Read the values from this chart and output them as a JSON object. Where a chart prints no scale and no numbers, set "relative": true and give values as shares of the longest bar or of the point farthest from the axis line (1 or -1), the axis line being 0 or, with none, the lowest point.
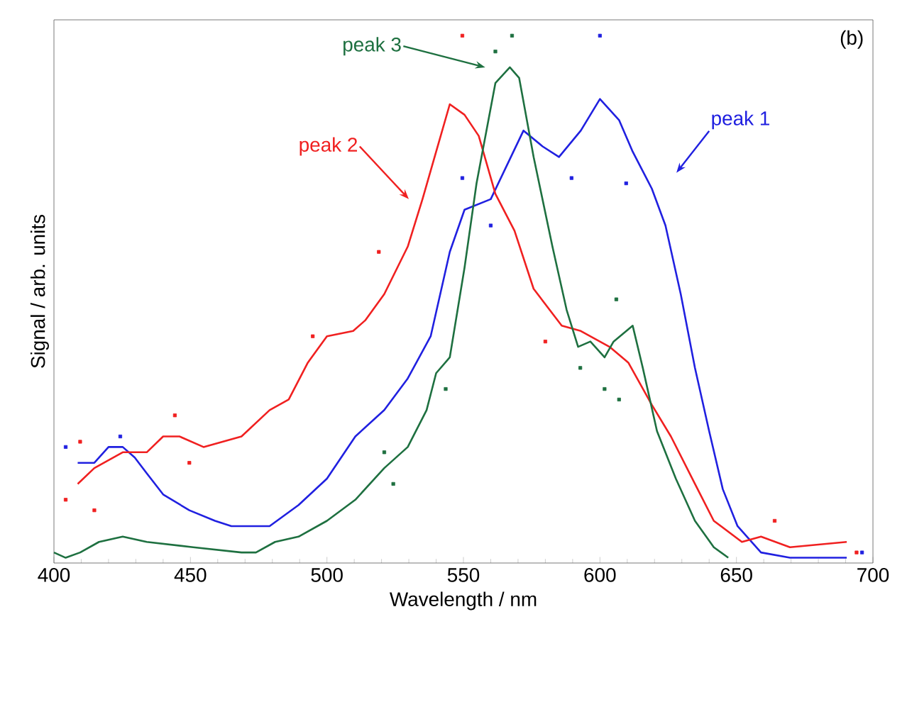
{
  "chart_data": {
    "type": "line",
    "xlabel": "Wavelength / nm",
    "ylabel": "Signal / arb. units",
    "relative": true,
    "xlim": [
      400,
      700
    ],
    "xticks": [
      400,
      450,
      500,
      550,
      600,
      650,
      700
    ],
    "annotations": [
      "peak 1",
      "peak 2",
      "peak 3",
      "(b)"
    ],
    "series": [
      {
        "color": "#2020e0",
        "x": [
          408.7,
          414.8,
          420,
          425.2,
          429.6,
          434,
          440,
          449.6,
          459,
          465,
          479,
          489.6,
          500,
          510.4,
          521,
          529.6,
          538,
          545,
          550.4,
          560,
          572,
          579,
          585,
          593,
          600,
          607,
          612,
          619,
          624,
          629.6,
          634.8,
          640,
          645,
          650.4,
          659,
          669.6,
          690.4
        ],
        "values": [
          0.19,
          0.19,
          0.22,
          0.22,
          0.2,
          0.17,
          0.13,
          0.1,
          0.08,
          0.07,
          0.07,
          0.11,
          0.16,
          0.24,
          0.29,
          0.35,
          0.43,
          0.59,
          0.67,
          0.69,
          0.82,
          0.79,
          0.77,
          0.82,
          0.88,
          0.84,
          0.78,
          0.71,
          0.64,
          0.51,
          0.37,
          0.25,
          0.14,
          0.07,
          0.02,
          0.01,
          0.01
        ]
      },
      {
        "color": "#f02020",
        "x": [
          408.7,
          414.8,
          425.2,
          434,
          440,
          446,
          454.8,
          468.7,
          479,
          486,
          493,
          500,
          509.6,
          514,
          521,
          529.6,
          535,
          540,
          545,
          550.4,
          555.6,
          561.7,
          568.7,
          575.7,
          586,
          593,
          603.5,
          610.4,
          619,
          626,
          634.8,
          641.7,
          652,
          659,
          669.6,
          690.4
        ],
        "values": [
          0.15,
          0.18,
          0.21,
          0.21,
          0.24,
          0.24,
          0.22,
          0.24,
          0.29,
          0.31,
          0.38,
          0.43,
          0.44,
          0.46,
          0.51,
          0.6,
          0.69,
          0.78,
          0.87,
          0.85,
          0.81,
          0.7,
          0.63,
          0.52,
          0.45,
          0.44,
          0.41,
          0.38,
          0.3,
          0.24,
          0.15,
          0.08,
          0.04,
          0.05,
          0.03,
          0.04
        ]
      },
      {
        "color": "#1e7040",
        "x": [
          400,
          404.3,
          409.6,
          416.5,
          425.2,
          434,
          451,
          468.7,
          474,
          481,
          489.6,
          500,
          510.4,
          521,
          529.6,
          536.5,
          540,
          545,
          550.4,
          554.8,
          561.7,
          567,
          570.4,
          575.7,
          582.6,
          587.8,
          592,
          596.5,
          601.7,
          605,
          612,
          615.7,
          620.9,
          627.8,
          634.8,
          641.7,
          647
        ],
        "values": [
          0.02,
          0.01,
          0.02,
          0.04,
          0.05,
          0.04,
          0.03,
          0.02,
          0.02,
          0.04,
          0.05,
          0.08,
          0.12,
          0.18,
          0.22,
          0.29,
          0.36,
          0.39,
          0.56,
          0.72,
          0.91,
          0.94,
          0.92,
          0.77,
          0.6,
          0.48,
          0.41,
          0.42,
          0.39,
          0.42,
          0.45,
          0.37,
          0.25,
          0.16,
          0.08,
          0.03,
          0.01
        ]
      },
      {
        "type": "scatter",
        "marker": "square",
        "color": "#2020e0",
        "x": [
          404.3,
          424.3,
          549.6,
          560,
          589.6,
          600,
          609.6,
          696
        ],
        "values": [
          0.22,
          0.24,
          0.73,
          0.64,
          0.73,
          1.0,
          0.72,
          0.02
        ]
      },
      {
        "type": "scatter",
        "marker": "square",
        "color": "#f02020",
        "x": [
          404.3,
          409.6,
          414.8,
          444.3,
          449.6,
          494.8,
          519,
          549.6,
          580,
          664,
          694
        ],
        "values": [
          0.12,
          0.23,
          0.1,
          0.28,
          0.19,
          0.43,
          0.59,
          1.0,
          0.42,
          0.08,
          0.02
        ]
      },
      {
        "type": "scatter",
        "marker": "square",
        "color": "#1e7040",
        "x": [
          521,
          524.3,
          543.5,
          561.7,
          567.8,
          592.8,
          601.7,
          606,
          607
        ],
        "values": [
          0.21,
          0.15,
          0.33,
          0.97,
          1.0,
          0.37,
          0.33,
          0.5,
          0.31
        ]
      }
    ]
  }
}
